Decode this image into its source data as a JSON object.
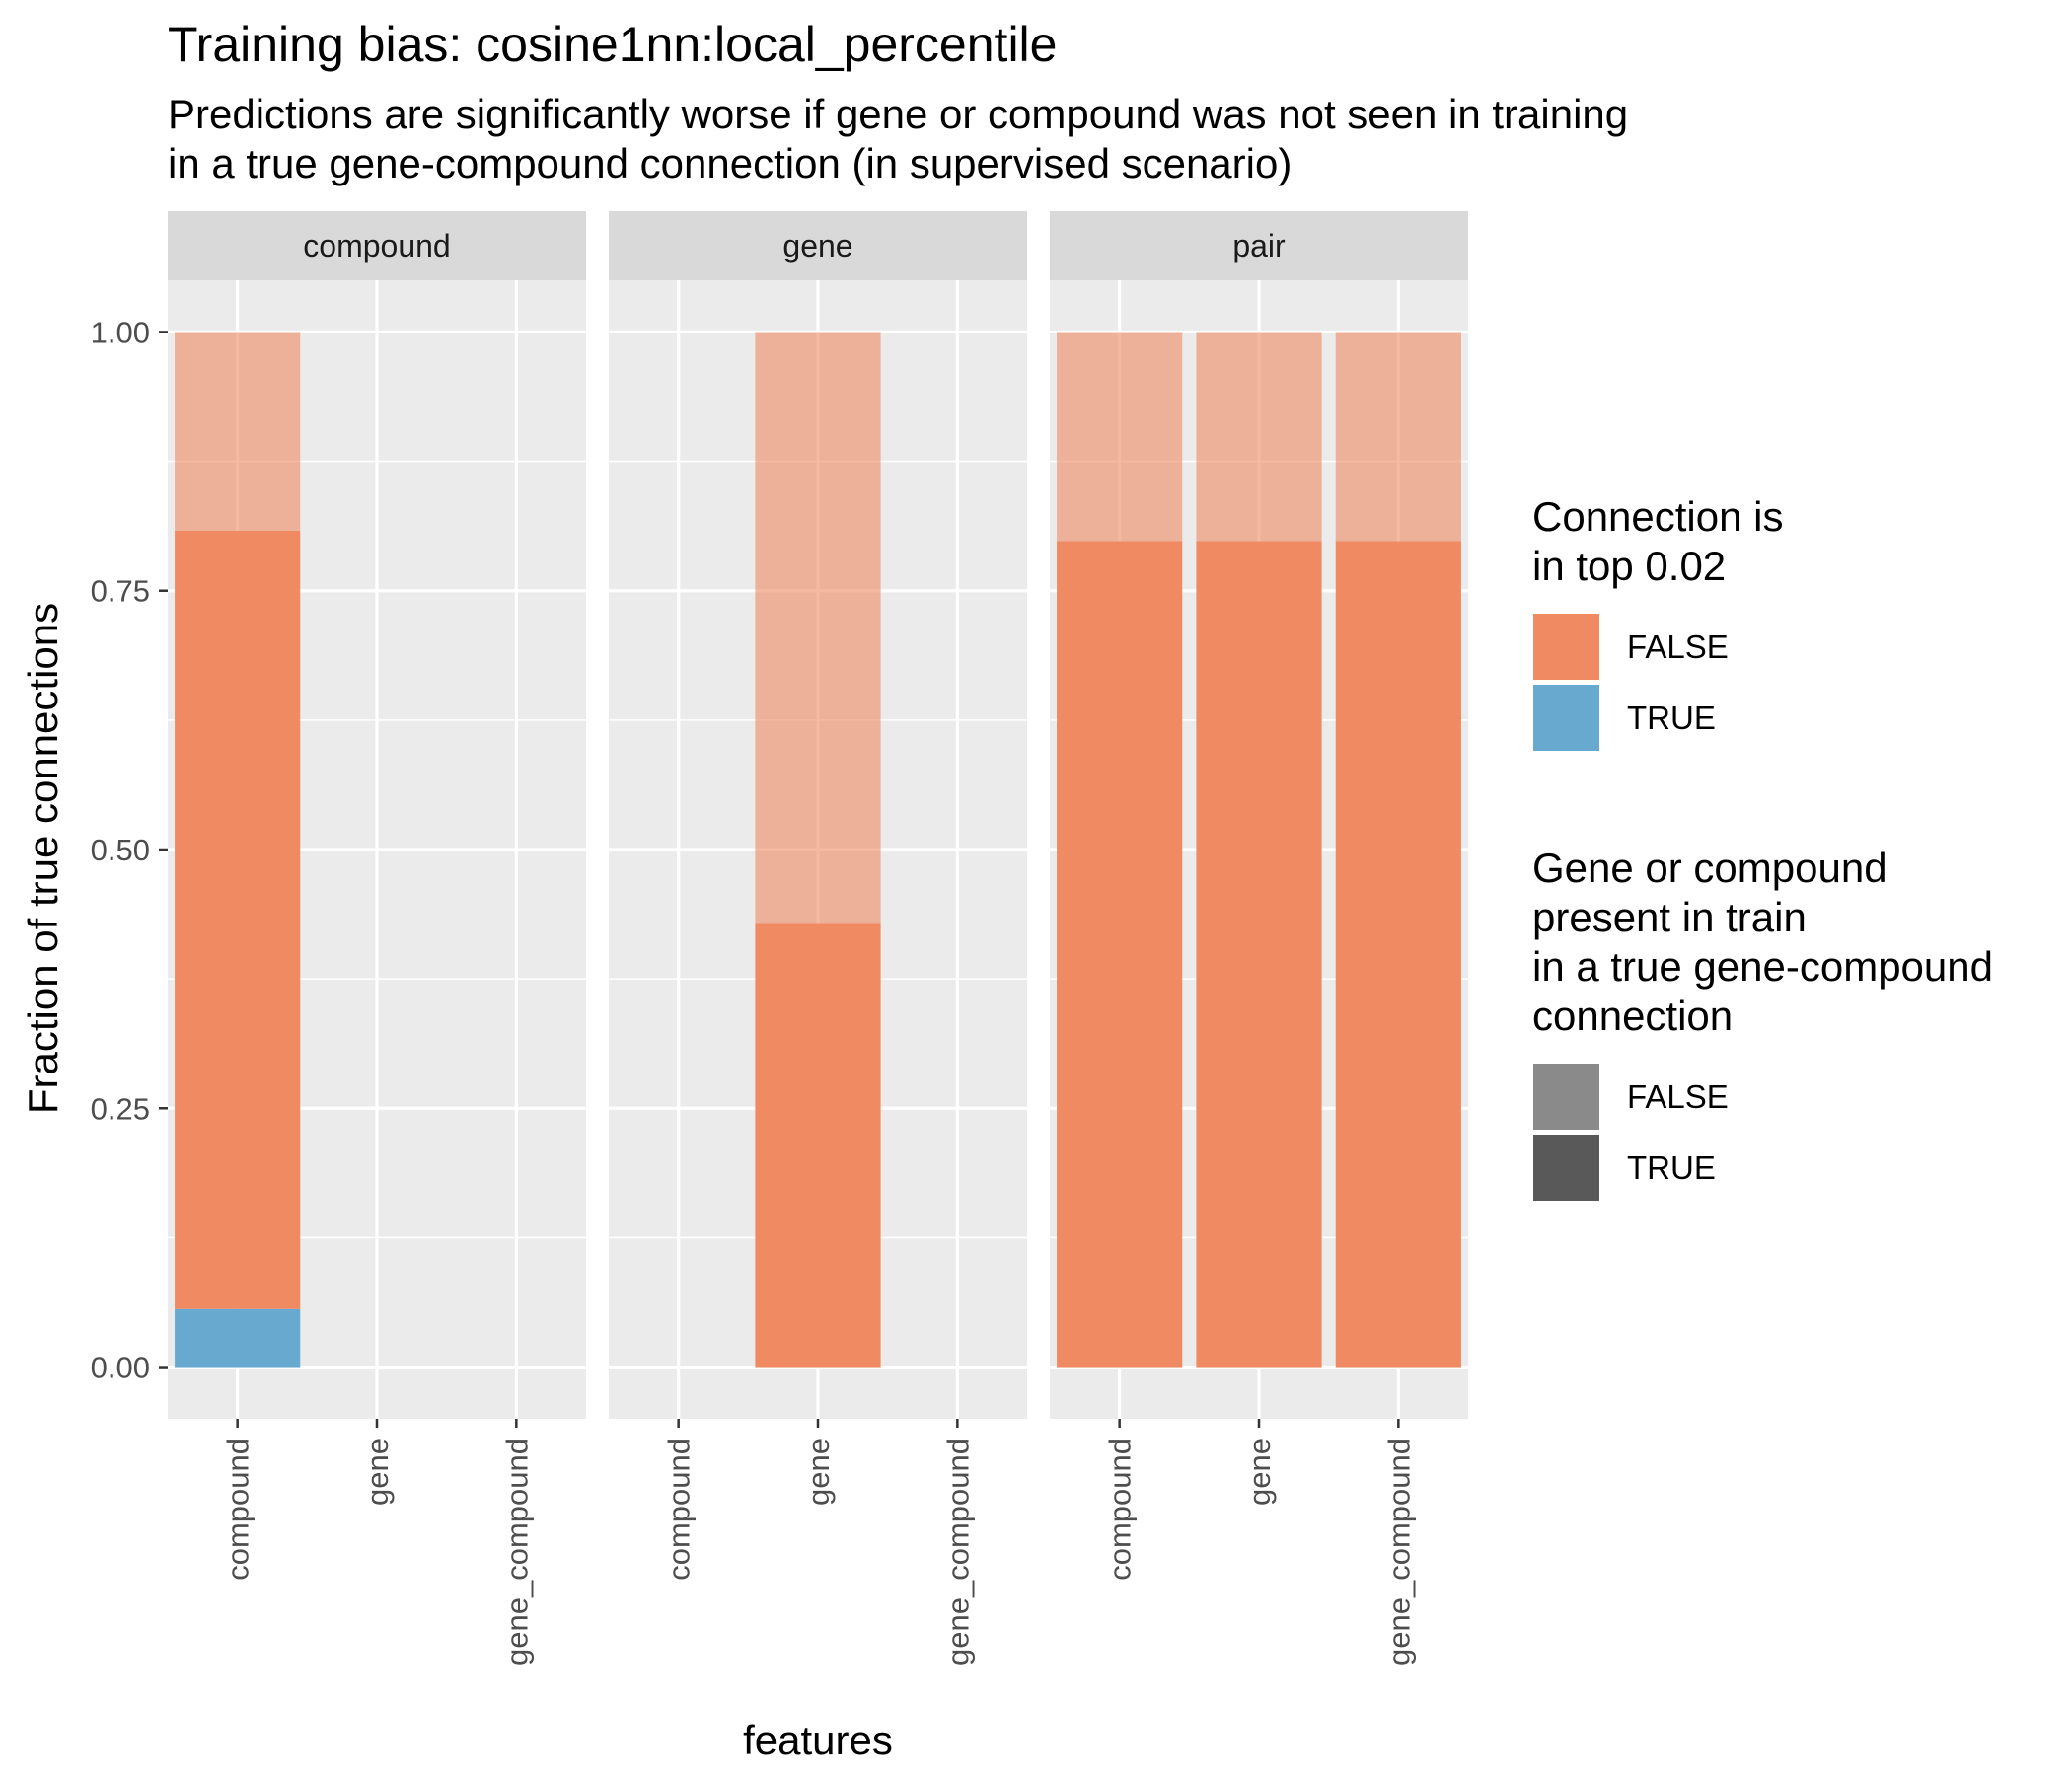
{
  "chart_data": {
    "type": "bar",
    "title": "Training bias: cosine1nn:local_percentile",
    "subtitle_lines": [
      "Predictions are significantly worse if gene or compound was not seen in training",
      "in a true gene-compound connection (in supervised scenario)"
    ],
    "xlabel": "features",
    "ylabel": "Fraction of true connections",
    "ylim": [
      -0.05,
      1.05
    ],
    "yticks": [
      0,
      0.25,
      0.5,
      0.75,
      1.0
    ],
    "ytick_labels": [
      "0.00",
      "0.25",
      "0.50",
      "0.75",
      "1.00"
    ],
    "categories": [
      "compound",
      "gene",
      "gene_compound"
    ],
    "grid": true,
    "legend_position": "right",
    "colors": {
      "panel_bg": "#ebebeb",
      "strip_bg": "#d9d9d9",
      "grid": "#ffffff",
      "fill_false": "#ef8a62",
      "fill_true": "#67a9cf",
      "alpha_false_swatch": "#8a8a8a",
      "alpha_true_swatch": "#595959"
    },
    "legends": [
      {
        "title_lines": [
          "Connection is",
          "in top 0.02"
        ],
        "items": [
          {
            "label": "FALSE",
            "color": "#ef8a62"
          },
          {
            "label": "TRUE",
            "color": "#67a9cf"
          }
        ]
      },
      {
        "title_lines": [
          "Gene or compound",
          "present in train",
          "in a true gene-compound",
          "connection"
        ],
        "items": [
          {
            "label": "FALSE",
            "color": "#8a8a8a"
          },
          {
            "label": "TRUE",
            "color": "#595959"
          }
        ]
      }
    ],
    "panels": [
      {
        "strip": "compound",
        "bars": [
          {
            "category": "compound",
            "segments": [
              {
                "top_connection": "TRUE",
                "present_in_train": "TRUE",
                "value": 0.056
              },
              {
                "top_connection": "FALSE",
                "present_in_train": "TRUE",
                "value": 0.752
              },
              {
                "top_connection": "FALSE",
                "present_in_train": "FALSE",
                "value": 0.192
              }
            ]
          }
        ]
      },
      {
        "strip": "gene",
        "bars": [
          {
            "category": "gene",
            "segments": [
              {
                "top_connection": "FALSE",
                "present_in_train": "TRUE",
                "value": 0.429
              },
              {
                "top_connection": "FALSE",
                "present_in_train": "FALSE",
                "value": 0.571
              }
            ]
          }
        ]
      },
      {
        "strip": "pair",
        "bars": [
          {
            "category": "compound",
            "segments": [
              {
                "top_connection": "FALSE",
                "present_in_train": "TRUE",
                "value": 0.798
              },
              {
                "top_connection": "FALSE",
                "present_in_train": "FALSE",
                "value": 0.202
              }
            ]
          },
          {
            "category": "gene",
            "segments": [
              {
                "top_connection": "FALSE",
                "present_in_train": "TRUE",
                "value": 0.798
              },
              {
                "top_connection": "FALSE",
                "present_in_train": "FALSE",
                "value": 0.202
              }
            ]
          },
          {
            "category": "gene_compound",
            "segments": [
              {
                "top_connection": "FALSE",
                "present_in_train": "TRUE",
                "value": 0.798
              },
              {
                "top_connection": "FALSE",
                "present_in_train": "FALSE",
                "value": 0.202
              }
            ]
          }
        ]
      }
    ]
  }
}
